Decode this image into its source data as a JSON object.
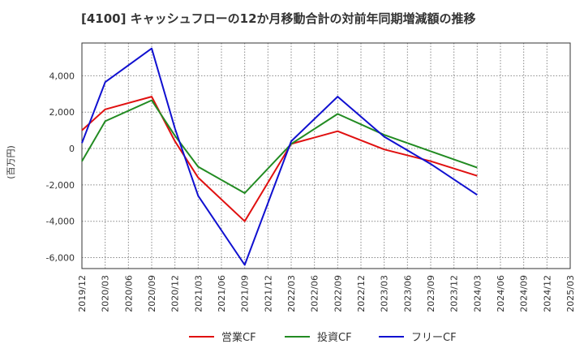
{
  "chart_data": {
    "type": "line",
    "title": "[4100]  キャッシュフローの12か月移動合計の対前年同期増減額の推移",
    "ylabel": "(百万円)",
    "xlabel": "",
    "ylim": [
      -6600,
      5800
    ],
    "yticks": [
      4000,
      2000,
      0,
      -2000,
      -4000,
      -6000
    ],
    "ytick_labels": [
      "4,000",
      "2,000",
      "0",
      "-2,000",
      "-4,000",
      "-6,000"
    ],
    "x_tick_labels": [
      "2019/12",
      "2020/03",
      "2020/06",
      "2020/09",
      "2020/12",
      "2021/03",
      "2021/06",
      "2021/09",
      "2021/12",
      "2022/03",
      "2022/06",
      "2022/09",
      "2022/12",
      "2023/03",
      "2023/06",
      "2023/09",
      "2023/12",
      "2024/03",
      "2024/06",
      "2024/09",
      "2024/12",
      "2025/03"
    ],
    "grid": true,
    "legend_position": "bottom",
    "series": [
      {
        "name": "営業CF",
        "color": "#e01010",
        "points": [
          [
            "2019/12",
            1000
          ],
          [
            "2020/03",
            2150
          ],
          [
            "2020/09",
            2850
          ],
          [
            "2020/12",
            400
          ],
          [
            "2021/03",
            -1600
          ],
          [
            "2021/09",
            -4000
          ],
          [
            "2022/03",
            250
          ],
          [
            "2022/09",
            950
          ],
          [
            "2023/03",
            -50
          ],
          [
            "2023/09",
            -700
          ],
          [
            "2024/03",
            -1500
          ]
        ]
      },
      {
        "name": "投資CF",
        "color": "#228b22",
        "points": [
          [
            "2019/12",
            -700
          ],
          [
            "2020/03",
            1500
          ],
          [
            "2020/09",
            2650
          ],
          [
            "2020/12",
            700
          ],
          [
            "2021/03",
            -1000
          ],
          [
            "2021/09",
            -2450
          ],
          [
            "2022/03",
            250
          ],
          [
            "2022/09",
            1900
          ],
          [
            "2023/03",
            750
          ],
          [
            "2023/09",
            -150
          ],
          [
            "2024/03",
            -1050
          ]
        ]
      },
      {
        "name": "フリーCF",
        "color": "#1010d0",
        "points": [
          [
            "2019/12",
            300
          ],
          [
            "2020/03",
            3650
          ],
          [
            "2020/09",
            5500
          ],
          [
            "2020/12",
            1100
          ],
          [
            "2021/03",
            -2600
          ],
          [
            "2021/09",
            -6400
          ],
          [
            "2022/03",
            400
          ],
          [
            "2022/09",
            2850
          ],
          [
            "2023/03",
            650
          ],
          [
            "2023/09",
            -850
          ],
          [
            "2024/03",
            -2550
          ]
        ]
      }
    ]
  }
}
